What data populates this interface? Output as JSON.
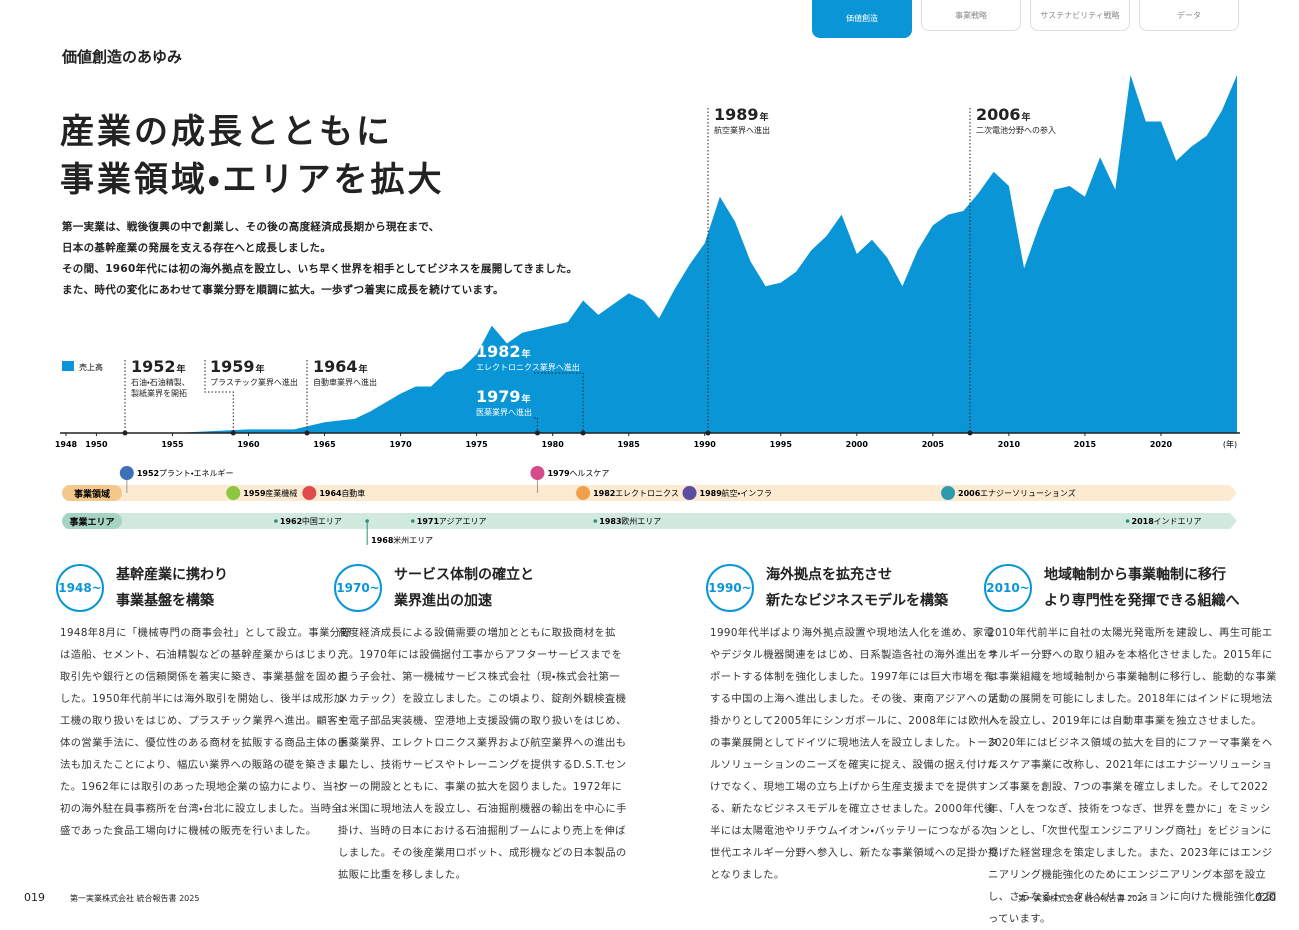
{
  "tabs": [
    "価値創造",
    "事業戦略",
    "サステナビリティ戦略",
    "データ"
  ],
  "section_label": "価値創造のあゆみ",
  "title_lines": [
    "産業の成長とともに",
    "事業領域・エリアを拡大"
  ],
  "intro_lines": [
    "第一実業は、戦後復興の中で創業し、その後の高度経済成長期から現在まで、",
    "日本の基幹産業の発展を支える存在へと成長しました。",
    "その間、1960年代には初の海外拠点を設立し、いち早く世界を相手としてビジネスを展開してきました。",
    "また、時代の変化にあわせて事業分野を順調に拡大。一歩ずつ着実に成長を続けています。"
  ],
  "chart_data": {
    "type": "area",
    "series": [
      {
        "name": "売上高",
        "color": "#0a96d6",
        "x": [
          1948,
          1950,
          1955,
          1960,
          1963,
          1965,
          1967,
          1968,
          1970,
          1971,
          1972,
          1973,
          1974,
          1975,
          1976,
          1977,
          1978,
          1979,
          1980,
          1981,
          1982,
          1983,
          1984,
          1985,
          1986,
          1987,
          1988,
          1989,
          1990,
          1991,
          1992,
          1993,
          1994,
          1995,
          1996,
          1997,
          1998,
          1999,
          2000,
          2001,
          2002,
          2003,
          2004,
          2005,
          2006,
          2007,
          2008,
          2009,
          2010,
          2011,
          2012,
          2013,
          2014,
          2015,
          2016,
          2017,
          2018,
          2019,
          2020,
          2021,
          2022,
          2023,
          2024,
          2025
        ],
        "values": [
          0,
          0,
          0,
          1,
          1,
          3,
          4,
          6,
          11,
          13,
          13,
          17,
          18,
          22,
          30,
          25,
          28,
          29,
          30,
          31,
          37,
          33,
          36,
          39,
          37,
          32,
          40,
          47,
          53,
          66,
          59,
          48,
          41,
          42,
          45,
          51,
          55,
          61,
          50,
          54,
          49,
          41,
          51,
          58,
          61,
          62,
          67,
          73,
          69,
          46,
          58,
          68,
          69,
          66,
          77,
          68,
          100,
          87,
          87,
          76,
          80,
          83,
          90,
          100
        ]
      }
    ],
    "xlim": [
      1948,
      2025
    ],
    "xticks": [
      1948,
      1950,
      1955,
      1960,
      1965,
      1970,
      1975,
      1980,
      1985,
      1990,
      1995,
      2000,
      2005,
      2010,
      2015,
      2020
    ],
    "x_unit": "(年)",
    "ylim": [
      0,
      100
    ]
  },
  "year_unit": "年",
  "milestones": [
    {
      "year": "1952",
      "lines": [
        "石油・石油精製、",
        "製紙業界を開拓"
      ]
    },
    {
      "year": "1959",
      "lines": [
        "プラスチック業界へ進出"
      ]
    },
    {
      "year": "1964",
      "lines": [
        "自動車業界へ進出"
      ]
    },
    {
      "year": "1982",
      "lines": [
        "エレクトロニクス業界へ進出"
      ]
    },
    {
      "year": "1979",
      "lines": [
        "医薬業界へ進出"
      ]
    },
    {
      "year": "1989",
      "lines": [
        "航空業界へ進出"
      ]
    },
    {
      "year": "2006",
      "lines": [
        "二次電池分野への参入"
      ]
    }
  ],
  "timeline": {
    "domain_label": "事業領域",
    "domains": [
      {
        "year": "1952",
        "name": "プラント・エネルギー"
      },
      {
        "year": "1959",
        "name": "産業機械"
      },
      {
        "year": "1964",
        "name": "自動車"
      },
      {
        "year": "1979",
        "name": "ヘルスケア"
      },
      {
        "year": "1982",
        "name": "エレクトロニクス"
      },
      {
        "year": "1989",
        "name": "航空・インフラ"
      },
      {
        "year": "2006",
        "name": "エナジーソリューションズ"
      }
    ],
    "area_label": "事業エリア",
    "areas": [
      {
        "year": "1962",
        "name": "中国エリア"
      },
      {
        "year": "1968",
        "name": "米州エリア"
      },
      {
        "year": "1971",
        "name": "アジアエリア"
      },
      {
        "year": "1983",
        "name": "欧州エリア"
      },
      {
        "year": "2018",
        "name": "インドエリア"
      }
    ]
  },
  "sections": [
    {
      "era": "1948~",
      "heading": [
        "基幹産業に携わり",
        "事業基盤を構築"
      ],
      "body": "1948年8月に「機械専門の商事会社」として設立。事業分野は造船、セメント、石油精製などの基幹産業からはじまり、取引先や銀行との信頼関係を着実に築き、事業基盤を固めました。1950年代前半には海外取引を開始し、後半は成形加工機の取り扱いをはじめ、プラスチック業界へ進出。顧客主体の営業手法に、優位性のある商材を拡販する商品主体の手法も加えたことにより、幅広い業界への販路の礎を築きました。1962年には取引のあった現地企業の協力により、当社初の海外駐在員事務所を台湾・台北に設立しました。当時全盛であった食品工場向けに機械の販売を行いました。"
    },
    {
      "era": "1970~",
      "heading": [
        "サービス体制の確立と",
        "業界進出の加速"
      ],
      "body": "高度経済成長による設備需要の増加とともに取扱商材を拡充。1970年には設備据付工事からアフターサービスまでを担う子会社、第一機械サービス株式会社（現・株式会社第一メカテック）を設立しました。この頃より、錠剤外観検査機や電子部品実装機、空港地上支援設備の取り扱いをはじめ、医薬業界、エレクトロニクス業界および航空業界への進出も果たし、技術サービスやトレーニングを提供するD.S.T.センターの開設とともに、事業の拡大を図りました。1972年には米国に現地法人を設立し、石油掘削機器の輸出を中心に手掛け、当時の日本における石油掘削ブームにより売上を伸ばしました。その後産業用ロボット、成形機などの日本製品の拡販に比重を移しました。"
    },
    {
      "era": "1990~",
      "heading": [
        "海外拠点を拡充させ",
        "新たなビジネスモデルを構築"
      ],
      "body": "1990年代半ばより海外拠点設置や現地法人化を進め、家電やデジタル機器関連をはじめ、日系製造各社の海外進出をサポートする体制を強化しました。1997年には巨大市場を有する中国の上海へ進出しました。その後、東南アジアへの足掛かりとして2005年にシンガポールに、2008年には欧州への事業展開としてドイツに現地法人を設立しました。トータルソリューションのニーズを確実に捉え、設備の据え付けだけでなく、現地工場の立ち上げから生産支援までを提供する、新たなビジネスモデルを確立させました。2000年代後半には太陽電池やリチウムイオン・バッテリーにつながる次世代エネルギー分野へ参入し、新たな事業領域への足掛かりとなりました。"
    },
    {
      "era": "2010~",
      "heading": [
        "地域軸制から事業軸制に移行",
        "より専門性を発揮できる組織へ"
      ],
      "body": "2010年代前半に自社の太陽光発電所を建設し、再生可能エネルギー分野への取り組みを本格化させました。2015年には事業組織を地域軸制から事業軸制に移行し、能動的な事業活動の展開を可能にしました。2018年にはインドに現地法人を設立し、2019年には自動車事業を独立させました。2020年にはビジネス領域の拡大を目的にファーマ事業をヘルスケア事業に改称し、2021年にはエナジーソリューションズ事業を創設、7つの事業を確立しました。そして2022年、「人をつなぎ、技術をつなぎ、世界を豊かに」をミッションとし、「次世代型エンジニアリング商社」をビジョンに掲げた経営理念を策定しました。また、2023年にはエンジニアリング機能強化のためにエンジニアリング本部を設立し、さらなるトータルソリューションに向けた機能強化を図っています。"
    }
  ],
  "footer": {
    "left_page": "019",
    "left_text": "第一実業株式会社 統合報告書 2025",
    "right_text": "第一実業株式会社 統合報告書 2025",
    "right_page": "020"
  }
}
